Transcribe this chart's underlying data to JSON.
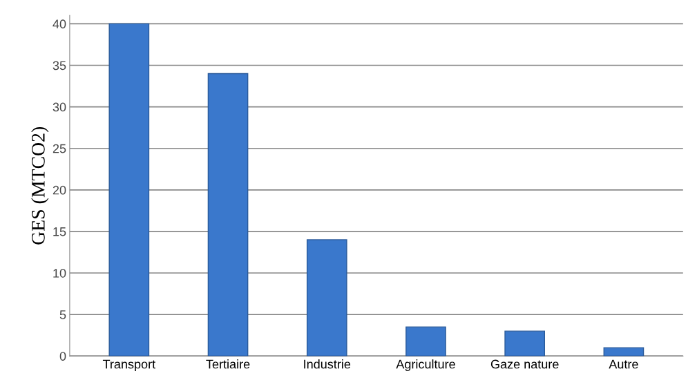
{
  "chart_data": {
    "type": "bar",
    "ylabel": "GES (MTCO2)",
    "categories": [
      "Transport",
      "Tertiaire",
      "Industrie",
      "Agriculture",
      "Gaze nature",
      "Autre"
    ],
    "values": [
      40,
      34,
      14,
      3.5,
      3,
      1
    ],
    "color": "#3a78cc",
    "ylim": [
      0,
      41
    ],
    "yticks": [
      0,
      5,
      10,
      15,
      20,
      25,
      30,
      35,
      40
    ],
    "grid": "y"
  }
}
